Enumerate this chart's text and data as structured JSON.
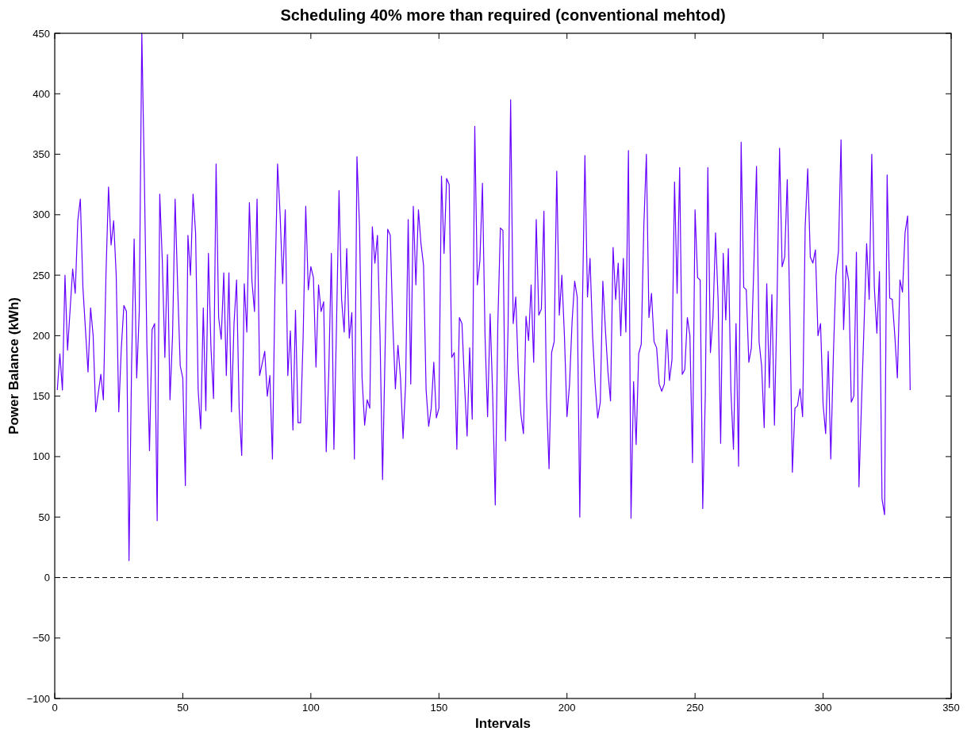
{
  "chart_data": {
    "type": "line",
    "title": "Scheduling 40% more than required (conventional mehtod)",
    "xlabel": "Intervals",
    "ylabel": "Power Balance (kWh)",
    "xlim": [
      0,
      350
    ],
    "xticks": [
      0,
      50,
      100,
      150,
      200,
      250,
      300,
      350
    ],
    "ylim": [
      -100,
      450
    ],
    "yticks": [
      -100,
      -50,
      0,
      50,
      100,
      150,
      200,
      250,
      300,
      350,
      400,
      450
    ],
    "grid": false,
    "line_style": "solid",
    "marker": "none",
    "ref_lines": [
      {
        "axis": "y",
        "value": 0,
        "color": "#000000",
        "line_style": "dashed"
      }
    ],
    "series": [
      {
        "color": "#6600ff",
        "x": [
          1,
          2,
          3,
          4,
          5,
          7,
          8,
          9,
          10,
          11,
          13,
          14,
          15,
          16,
          18,
          19,
          20,
          21,
          22,
          23,
          24,
          25,
          26,
          27,
          28,
          29,
          30,
          31,
          32,
          33,
          34,
          35,
          36,
          37,
          38,
          39,
          40,
          41,
          42,
          43,
          44,
          45,
          46,
          47,
          48,
          49,
          50,
          51,
          52,
          53,
          54,
          55,
          56,
          57,
          58,
          59,
          60,
          61,
          62,
          63,
          64,
          65,
          66,
          67,
          68,
          69,
          70,
          71,
          72,
          73,
          74,
          75,
          76,
          77,
          78,
          79,
          80,
          82,
          83,
          84,
          85,
          86,
          87,
          88,
          89,
          90,
          91,
          92,
          93,
          94,
          95,
          96,
          97,
          98,
          99,
          100,
          101,
          102,
          103,
          104,
          105,
          106,
          107,
          108,
          109,
          110,
          111,
          112,
          113,
          114,
          115,
          116,
          117,
          118,
          119,
          120,
          121,
          122,
          123,
          124,
          125,
          126,
          127,
          128,
          129,
          130,
          131,
          132,
          133,
          134,
          135,
          136,
          137,
          138,
          139,
          140,
          141,
          142,
          143,
          144,
          145,
          146,
          147,
          148,
          149,
          150,
          151,
          152,
          153,
          154,
          155,
          156,
          157,
          158,
          159,
          160,
          161,
          162,
          163,
          164,
          165,
          166,
          167,
          168,
          169,
          170,
          171,
          172,
          173,
          174,
          175,
          176,
          177,
          178,
          179,
          180,
          181,
          182,
          183,
          184,
          185,
          186,
          187,
          188,
          189,
          190,
          191,
          192,
          193,
          194,
          195,
          196,
          197,
          198,
          199,
          200,
          201,
          202,
          203,
          204,
          205,
          206,
          207,
          208,
          209,
          210,
          211,
          212,
          213,
          214,
          215,
          216,
          217,
          218,
          219,
          220,
          221,
          222,
          223,
          224,
          225,
          226,
          227,
          228,
          229,
          230,
          231,
          232,
          233,
          234,
          235,
          236,
          237,
          238,
          239,
          240,
          241,
          242,
          243,
          244,
          245,
          246,
          247,
          248,
          249,
          250,
          251,
          252,
          253,
          254,
          255,
          256,
          257,
          258,
          259,
          260,
          261,
          262,
          263,
          264,
          265,
          266,
          267,
          268,
          269,
          270,
          271,
          272,
          273,
          274,
          275,
          276,
          277,
          278,
          279,
          280,
          281,
          282,
          283,
          284,
          285,
          286,
          287,
          288,
          289,
          290,
          291,
          292,
          293,
          294,
          295,
          296,
          297,
          298,
          299,
          300,
          301,
          302,
          303,
          304,
          305,
          306,
          307,
          308,
          309,
          310,
          311,
          312,
          313,
          314,
          315,
          316,
          317,
          318,
          319,
          320,
          321,
          322,
          323,
          324,
          325,
          326,
          327,
          328,
          329,
          330,
          331,
          332,
          333,
          334
        ],
        "values": [
          155,
          185,
          155,
          250,
          188,
          255,
          235,
          295,
          313,
          240,
          170,
          223,
          200,
          137,
          168,
          147,
          250,
          323,
          275,
          295,
          250,
          137,
          190,
          225,
          220,
          14,
          175,
          280,
          165,
          220,
          450,
          330,
          190,
          105,
          205,
          210,
          47,
          317,
          262,
          182,
          267,
          147,
          200,
          313,
          240,
          175,
          165,
          76,
          283,
          250,
          317,
          285,
          155,
          123,
          223,
          138,
          268,
          190,
          148,
          342,
          215,
          197,
          252,
          167,
          252,
          137,
          210,
          246,
          140,
          101,
          243,
          203,
          310,
          245,
          220,
          313,
          167,
          187,
          150,
          167,
          98,
          240,
          342,
          300,
          243,
          304,
          167,
          204,
          122,
          221,
          128,
          128,
          200,
          307,
          238,
          257,
          248,
          174,
          242,
          220,
          228,
          104,
          170,
          268,
          106,
          207,
          320,
          230,
          203,
          272,
          198,
          219,
          98,
          348,
          290,
          165,
          126,
          147,
          140,
          290,
          260,
          283,
          200,
          81,
          190,
          288,
          283,
          210,
          156,
          192,
          165,
          115,
          160,
          296,
          160,
          307,
          242,
          304,
          276,
          258,
          155,
          125,
          140,
          178,
          132,
          140,
          332,
          268,
          330,
          325,
          182,
          186,
          106,
          215,
          210,
          160,
          117,
          190,
          131,
          373,
          242,
          262,
          326,
          200,
          133,
          218,
          150,
          60,
          210,
          289,
          287,
          113,
          208,
          395,
          210,
          232,
          170,
          135,
          119,
          216,
          196,
          242,
          178,
          296,
          217,
          222,
          303,
          150,
          90,
          186,
          195,
          336,
          217,
          250,
          200,
          133,
          160,
          212,
          245,
          232,
          50,
          220,
          349,
          232,
          264,
          200,
          160,
          132,
          145,
          245,
          205,
          170,
          146,
          273,
          230,
          260,
          200,
          264,
          203,
          353,
          49,
          162,
          110,
          185,
          193,
          290,
          350,
          215,
          235,
          195,
          190,
          160,
          154,
          160,
          205,
          163,
          180,
          327,
          235,
          339,
          168,
          172,
          215,
          200,
          95,
          304,
          248,
          246,
          57,
          150,
          339,
          186,
          215,
          285,
          230,
          111,
          268,
          213,
          272,
          155,
          106,
          210,
          92,
          360,
          240,
          238,
          178,
          190,
          260,
          340,
          195,
          175,
          124,
          243,
          157,
          234,
          126,
          227,
          355,
          257,
          265,
          329,
          220,
          87,
          140,
          142,
          156,
          133,
          290,
          338,
          265,
          260,
          271,
          200,
          210,
          143,
          119,
          187,
          98,
          183,
          250,
          270,
          362,
          205,
          258,
          245,
          145,
          150,
          269,
          75,
          145,
          210,
          276,
          230,
          350,
          240,
          202,
          253,
          65,
          52,
          333,
          231,
          230,
          200,
          165,
          246,
          236,
          285,
          299,
          155
        ]
      }
    ]
  }
}
